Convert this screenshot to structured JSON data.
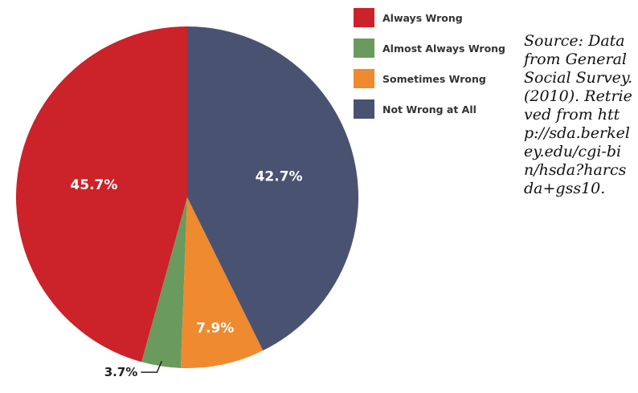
{
  "chart_data": {
    "type": "pie",
    "title": "",
    "categories": [
      "Always Wrong",
      "Almost Always Wrong",
      "Sometimes Wrong",
      "Not Wrong at All"
    ],
    "values": [
      45.7,
      3.7,
      7.9,
      42.7
    ],
    "value_labels": [
      "45.7%",
      "3.7%",
      "7.9%",
      "42.7%"
    ],
    "colors": [
      "#cc2229",
      "#6b9a5e",
      "#ef8a2e",
      "#4a5272"
    ],
    "start_angle_deg": 0,
    "direction": "counterclockwise-from-top-for-first-slice",
    "legend_position": "top-right"
  },
  "source_note": "Source: Data from General Social Survey. (2010). Retrieved from http://sda.berkeley.edu/cgi-bin/hsda?harcsda+gss10."
}
